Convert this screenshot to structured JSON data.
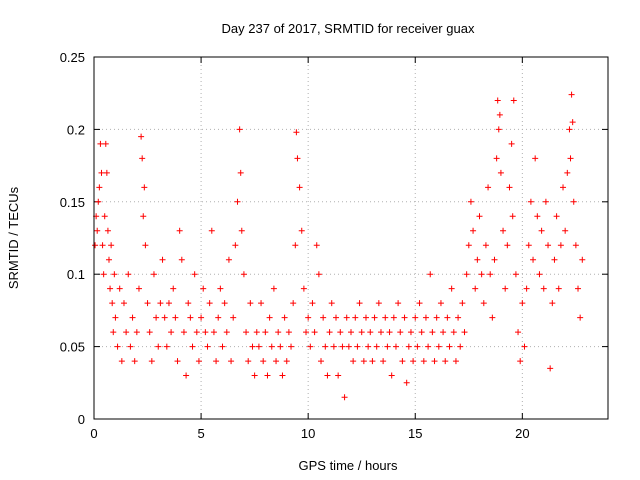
{
  "chart_data": {
    "type": "scatter",
    "title": "Day 237 of 2017, SRMTID for receiver guax",
    "xlabel": "GPS time / hours",
    "ylabel": "SRMTID / TECUs",
    "xlim": [
      0,
      24
    ],
    "ylim": [
      0,
      0.25
    ],
    "xticks": [
      0,
      5,
      10,
      15,
      20
    ],
    "xtick_labels": [
      "0",
      "5",
      "10",
      "15",
      "20"
    ],
    "yticks": [
      0,
      0.05,
      0.1,
      0.15,
      0.2,
      0.25
    ],
    "ytick_labels": [
      "0",
      "0.05",
      "0.1",
      "0.15",
      "0.2",
      "0.25"
    ],
    "grid": true,
    "marker": "+",
    "series_color": "#ff0000",
    "series": [
      {
        "name": "SRMTID",
        "points": [
          [
            0.05,
            0.12
          ],
          [
            0.1,
            0.14
          ],
          [
            0.15,
            0.13
          ],
          [
            0.2,
            0.15
          ],
          [
            0.25,
            0.16
          ],
          [
            0.3,
            0.19
          ],
          [
            0.35,
            0.17
          ],
          [
            0.4,
            0.12
          ],
          [
            0.45,
            0.1
          ],
          [
            0.5,
            0.14
          ],
          [
            0.55,
            0.19
          ],
          [
            0.6,
            0.17
          ],
          [
            0.65,
            0.13
          ],
          [
            0.7,
            0.11
          ],
          [
            0.75,
            0.09
          ],
          [
            0.8,
            0.12
          ],
          [
            0.85,
            0.08
          ],
          [
            0.9,
            0.06
          ],
          [
            0.95,
            0.1
          ],
          [
            1.0,
            0.07
          ],
          [
            1.1,
            0.05
          ],
          [
            1.2,
            0.09
          ],
          [
            1.3,
            0.04
          ],
          [
            1.4,
            0.08
          ],
          [
            1.5,
            0.06
          ],
          [
            1.6,
            0.1
          ],
          [
            1.7,
            0.05
          ],
          [
            1.8,
            0.07
          ],
          [
            1.9,
            0.04
          ],
          [
            2.0,
            0.06
          ],
          [
            2.1,
            0.09
          ],
          [
            2.2,
            0.195
          ],
          [
            2.25,
            0.18
          ],
          [
            2.3,
            0.14
          ],
          [
            2.35,
            0.16
          ],
          [
            2.4,
            0.12
          ],
          [
            2.5,
            0.08
          ],
          [
            2.6,
            0.06
          ],
          [
            2.7,
            0.04
          ],
          [
            2.8,
            0.1
          ],
          [
            2.9,
            0.07
          ],
          [
            3.0,
            0.05
          ],
          [
            3.1,
            0.08
          ],
          [
            3.2,
            0.11
          ],
          [
            3.3,
            0.07
          ],
          [
            3.4,
            0.05
          ],
          [
            3.5,
            0.08
          ],
          [
            3.6,
            0.06
          ],
          [
            3.7,
            0.09
          ],
          [
            3.8,
            0.07
          ],
          [
            3.9,
            0.04
          ],
          [
            4.0,
            0.13
          ],
          [
            4.1,
            0.11
          ],
          [
            4.2,
            0.06
          ],
          [
            4.3,
            0.03
          ],
          [
            4.4,
            0.08
          ],
          [
            4.5,
            0.07
          ],
          [
            4.6,
            0.05
          ],
          [
            4.7,
            0.1
          ],
          [
            4.8,
            0.06
          ],
          [
            4.9,
            0.04
          ],
          [
            5.0,
            0.07
          ],
          [
            5.1,
            0.09
          ],
          [
            5.2,
            0.06
          ],
          [
            5.3,
            0.05
          ],
          [
            5.4,
            0.08
          ],
          [
            5.5,
            0.13
          ],
          [
            5.6,
            0.06
          ],
          [
            5.7,
            0.04
          ],
          [
            5.8,
            0.07
          ],
          [
            5.9,
            0.09
          ],
          [
            6.0,
            0.05
          ],
          [
            6.1,
            0.08
          ],
          [
            6.2,
            0.06
          ],
          [
            6.3,
            0.11
          ],
          [
            6.4,
            0.04
          ],
          [
            6.5,
            0.07
          ],
          [
            6.6,
            0.12
          ],
          [
            6.7,
            0.15
          ],
          [
            6.8,
            0.2
          ],
          [
            6.85,
            0.17
          ],
          [
            6.9,
            0.13
          ],
          [
            7.0,
            0.1
          ],
          [
            7.1,
            0.06
          ],
          [
            7.2,
            0.04
          ],
          [
            7.3,
            0.08
          ],
          [
            7.4,
            0.05
          ],
          [
            7.5,
            0.03
          ],
          [
            7.6,
            0.06
          ],
          [
            7.7,
            0.05
          ],
          [
            7.8,
            0.08
          ],
          [
            7.9,
            0.04
          ],
          [
            8.0,
            0.06
          ],
          [
            8.1,
            0.03
          ],
          [
            8.2,
            0.07
          ],
          [
            8.3,
            0.05
          ],
          [
            8.4,
            0.09
          ],
          [
            8.5,
            0.04
          ],
          [
            8.6,
            0.06
          ],
          [
            8.7,
            0.05
          ],
          [
            8.8,
            0.03
          ],
          [
            8.9,
            0.07
          ],
          [
            9.0,
            0.04
          ],
          [
            9.1,
            0.06
          ],
          [
            9.2,
            0.05
          ],
          [
            9.3,
            0.08
          ],
          [
            9.4,
            0.12
          ],
          [
            9.45,
            0.198
          ],
          [
            9.5,
            0.18
          ],
          [
            9.6,
            0.16
          ],
          [
            9.7,
            0.13
          ],
          [
            9.8,
            0.09
          ],
          [
            9.9,
            0.06
          ],
          [
            10.0,
            0.07
          ],
          [
            10.1,
            0.05
          ],
          [
            10.2,
            0.08
          ],
          [
            10.3,
            0.06
          ],
          [
            10.4,
            0.12
          ],
          [
            10.5,
            0.1
          ],
          [
            10.6,
            0.04
          ],
          [
            10.7,
            0.07
          ],
          [
            10.8,
            0.05
          ],
          [
            10.9,
            0.03
          ],
          [
            11.0,
            0.06
          ],
          [
            11.1,
            0.08
          ],
          [
            11.2,
            0.05
          ],
          [
            11.3,
            0.07
          ],
          [
            11.4,
            0.03
          ],
          [
            11.5,
            0.06
          ],
          [
            11.6,
            0.05
          ],
          [
            11.7,
            0.015
          ],
          [
            11.8,
            0.07
          ],
          [
            11.9,
            0.05
          ],
          [
            12.0,
            0.06
          ],
          [
            12.1,
            0.04
          ],
          [
            12.2,
            0.07
          ],
          [
            12.3,
            0.05
          ],
          [
            12.4,
            0.08
          ],
          [
            12.5,
            0.06
          ],
          [
            12.6,
            0.04
          ],
          [
            12.7,
            0.07
          ],
          [
            12.8,
            0.05
          ],
          [
            12.9,
            0.06
          ],
          [
            13.0,
            0.04
          ],
          [
            13.1,
            0.07
          ],
          [
            13.2,
            0.05
          ],
          [
            13.3,
            0.08
          ],
          [
            13.4,
            0.06
          ],
          [
            13.5,
            0.04
          ],
          [
            13.6,
            0.07
          ],
          [
            13.7,
            0.05
          ],
          [
            13.8,
            0.06
          ],
          [
            13.9,
            0.03
          ],
          [
            14.0,
            0.07
          ],
          [
            14.1,
            0.05
          ],
          [
            14.2,
            0.08
          ],
          [
            14.3,
            0.06
          ],
          [
            14.4,
            0.04
          ],
          [
            14.5,
            0.07
          ],
          [
            14.6,
            0.025
          ],
          [
            14.7,
            0.05
          ],
          [
            14.8,
            0.06
          ],
          [
            14.9,
            0.04
          ],
          [
            15.0,
            0.07
          ],
          [
            15.1,
            0.05
          ],
          [
            15.2,
            0.08
          ],
          [
            15.3,
            0.06
          ],
          [
            15.4,
            0.04
          ],
          [
            15.5,
            0.07
          ],
          [
            15.6,
            0.05
          ],
          [
            15.7,
            0.1
          ],
          [
            15.8,
            0.06
          ],
          [
            15.9,
            0.04
          ],
          [
            16.0,
            0.07
          ],
          [
            16.1,
            0.05
          ],
          [
            16.2,
            0.08
          ],
          [
            16.3,
            0.06
          ],
          [
            16.4,
            0.04
          ],
          [
            16.5,
            0.07
          ],
          [
            16.6,
            0.05
          ],
          [
            16.7,
            0.09
          ],
          [
            16.8,
            0.06
          ],
          [
            16.9,
            0.04
          ],
          [
            17.0,
            0.07
          ],
          [
            17.1,
            0.05
          ],
          [
            17.2,
            0.08
          ],
          [
            17.3,
            0.06
          ],
          [
            17.4,
            0.1
          ],
          [
            17.5,
            0.12
          ],
          [
            17.6,
            0.15
          ],
          [
            17.7,
            0.13
          ],
          [
            17.8,
            0.09
          ],
          [
            17.9,
            0.11
          ],
          [
            18.0,
            0.14
          ],
          [
            18.1,
            0.1
          ],
          [
            18.2,
            0.08
          ],
          [
            18.3,
            0.12
          ],
          [
            18.4,
            0.16
          ],
          [
            18.5,
            0.1
          ],
          [
            18.6,
            0.07
          ],
          [
            18.7,
            0.11
          ],
          [
            18.8,
            0.18
          ],
          [
            18.85,
            0.22
          ],
          [
            18.9,
            0.2
          ],
          [
            18.95,
            0.21
          ],
          [
            19.0,
            0.17
          ],
          [
            19.1,
            0.13
          ],
          [
            19.2,
            0.09
          ],
          [
            19.3,
            0.12
          ],
          [
            19.4,
            0.16
          ],
          [
            19.5,
            0.19
          ],
          [
            19.55,
            0.14
          ],
          [
            19.6,
            0.22
          ],
          [
            19.7,
            0.1
          ],
          [
            19.8,
            0.06
          ],
          [
            19.9,
            0.04
          ],
          [
            20.0,
            0.08
          ],
          [
            20.1,
            0.05
          ],
          [
            20.2,
            0.09
          ],
          [
            20.3,
            0.12
          ],
          [
            20.4,
            0.15
          ],
          [
            20.5,
            0.11
          ],
          [
            20.6,
            0.18
          ],
          [
            20.7,
            0.14
          ],
          [
            20.8,
            0.1
          ],
          [
            20.9,
            0.13
          ],
          [
            21.0,
            0.09
          ],
          [
            21.1,
            0.15
          ],
          [
            21.2,
            0.12
          ],
          [
            21.3,
            0.035
          ],
          [
            21.4,
            0.08
          ],
          [
            21.5,
            0.11
          ],
          [
            21.6,
            0.14
          ],
          [
            21.7,
            0.09
          ],
          [
            21.8,
            0.12
          ],
          [
            21.9,
            0.16
          ],
          [
            22.0,
            0.13
          ],
          [
            22.1,
            0.17
          ],
          [
            22.2,
            0.2
          ],
          [
            22.25,
            0.18
          ],
          [
            22.3,
            0.224
          ],
          [
            22.35,
            0.205
          ],
          [
            22.4,
            0.15
          ],
          [
            22.5,
            0.12
          ],
          [
            22.6,
            0.09
          ],
          [
            22.7,
            0.07
          ],
          [
            22.8,
            0.11
          ]
        ]
      }
    ]
  }
}
